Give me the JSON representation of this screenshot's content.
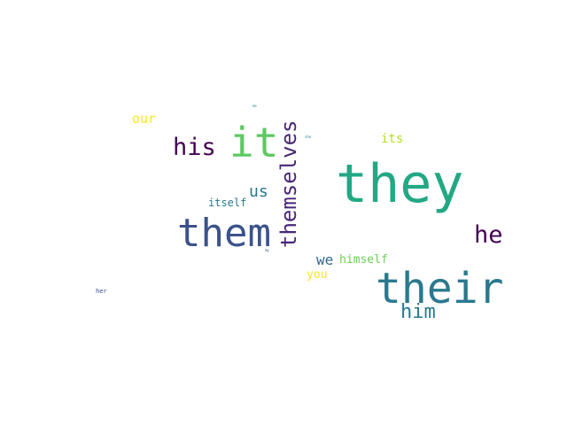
{
  "words": [
    {
      "text": "they",
      "color": "#22a884"
    },
    {
      "text": "their",
      "color": "#2a788e"
    },
    {
      "text": "them",
      "color": "#3b528b"
    },
    {
      "text": "it",
      "color": "#5ec962"
    },
    {
      "text": "themselves",
      "color": "#482878"
    },
    {
      "text": "his",
      "color": "#440154"
    },
    {
      "text": "he",
      "color": "#440154"
    },
    {
      "text": "him",
      "color": "#2a788e"
    },
    {
      "text": "us",
      "color": "#2a788e"
    },
    {
      "text": "our",
      "color": "#fde725"
    },
    {
      "text": "its",
      "color": "#b5de2b"
    },
    {
      "text": "we",
      "color": "#31688e"
    },
    {
      "text": "himself",
      "color": "#6ece58"
    },
    {
      "text": "itself",
      "color": "#2a788e"
    },
    {
      "text": "you",
      "color": "#fde725"
    },
    {
      "text": "her",
      "color": "#3e4a89"
    },
    {
      "text": "me",
      "color": "#1f9e89"
    },
    {
      "text": "she",
      "color": "#26828e"
    },
    {
      "text": "my",
      "color": "#31688e"
    }
  ]
}
